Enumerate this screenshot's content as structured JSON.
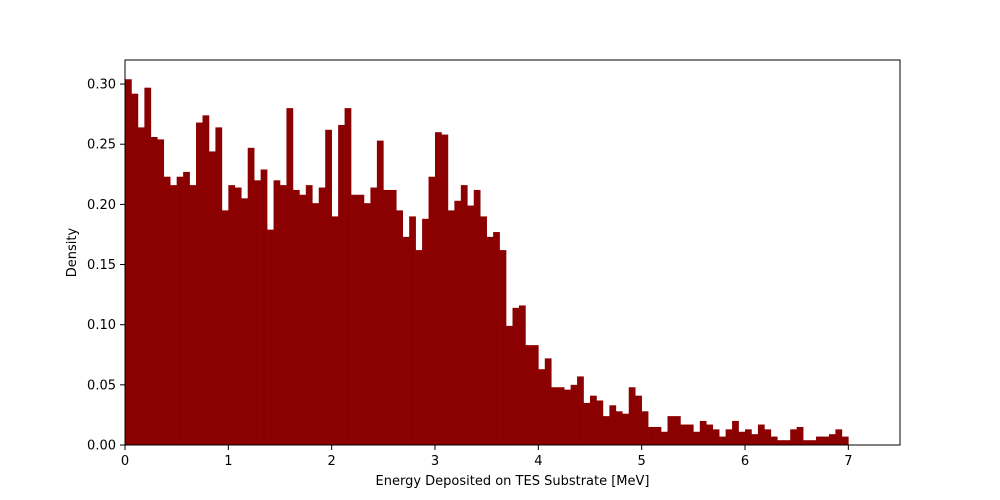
{
  "chart_data": {
    "type": "bar",
    "histogram": true,
    "title": "",
    "xlabel": "Energy Deposited on TES Substrate [MeV]",
    "ylabel": "Density",
    "xlim": [
      0,
      7.5
    ],
    "ylim": [
      0,
      0.32
    ],
    "xticks": [
      0,
      1,
      2,
      3,
      4,
      5,
      6,
      7
    ],
    "yticks": [
      0.0,
      0.05,
      0.1,
      0.15,
      0.2,
      0.25,
      0.3
    ],
    "xtick_labels": [
      "0",
      "1",
      "2",
      "3",
      "4",
      "5",
      "6",
      "7"
    ],
    "ytick_labels": [
      "0.00",
      "0.05",
      "0.10",
      "0.15",
      "0.20",
      "0.25",
      "0.30"
    ],
    "grid": false,
    "bar_color": "#8b0000",
    "bin_width": 0.0625,
    "bin_start": 0,
    "values": [
      0.304,
      0.292,
      0.264,
      0.297,
      0.256,
      0.254,
      0.223,
      0.216,
      0.223,
      0.227,
      0.216,
      0.268,
      0.274,
      0.244,
      0.264,
      0.195,
      0.216,
      0.214,
      0.205,
      0.247,
      0.22,
      0.229,
      0.179,
      0.22,
      0.216,
      0.28,
      0.212,
      0.208,
      0.216,
      0.201,
      0.214,
      0.262,
      0.19,
      0.266,
      0.28,
      0.208,
      0.208,
      0.201,
      0.214,
      0.253,
      0.212,
      0.212,
      0.195,
      0.173,
      0.19,
      0.162,
      0.188,
      0.223,
      0.26,
      0.258,
      0.195,
      0.203,
      0.216,
      0.199,
      0.212,
      0.19,
      0.173,
      0.177,
      0.162,
      0.099,
      0.114,
      0.116,
      0.083,
      0.083,
      0.063,
      0.072,
      0.048,
      0.048,
      0.046,
      0.05,
      0.057,
      0.035,
      0.041,
      0.037,
      0.024,
      0.033,
      0.028,
      0.026,
      0.048,
      0.041,
      0.028,
      0.015,
      0.015,
      0.011,
      0.024,
      0.024,
      0.017,
      0.017,
      0.011,
      0.02,
      0.017,
      0.013,
      0.007,
      0.013,
      0.02,
      0.011,
      0.013,
      0.009,
      0.017,
      0.013,
      0.007,
      0.004,
      0.004,
      0.013,
      0.015,
      0.004,
      0.004,
      0.007,
      0.007,
      0.009,
      0.013,
      0.007
    ]
  }
}
